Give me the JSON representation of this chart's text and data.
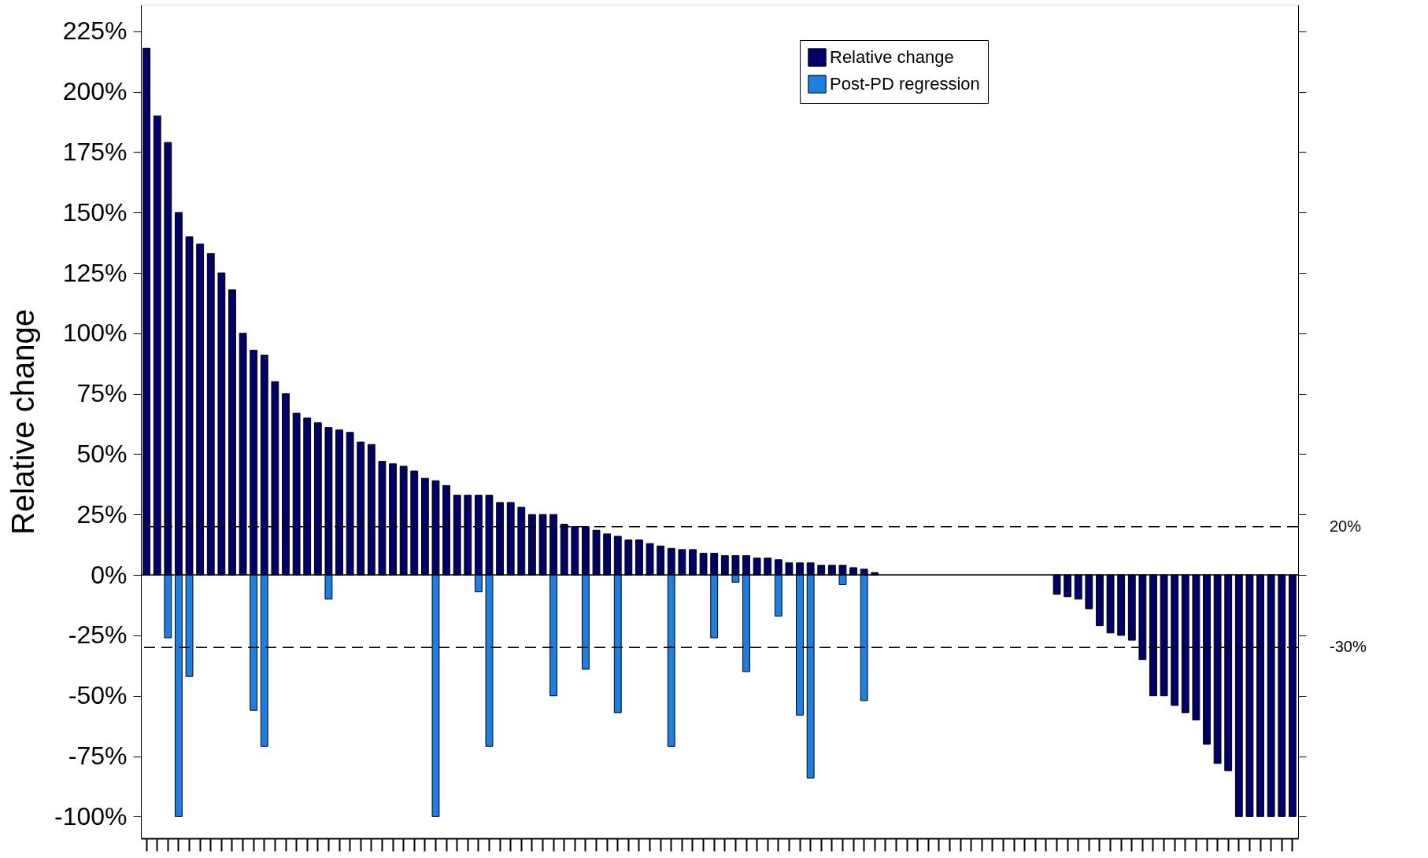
{
  "chart_data": {
    "type": "bar",
    "ylabel": "Relative change",
    "categories": [
      null,
      null,
      null,
      null,
      null,
      null,
      null,
      null,
      null,
      null,
      null,
      null,
      null,
      null,
      null,
      null,
      null,
      null,
      null,
      null,
      null,
      null,
      null,
      null,
      null,
      null,
      null,
      null,
      null,
      null,
      null,
      null,
      null,
      null,
      null,
      null,
      null,
      null,
      null,
      null,
      null,
      null,
      null,
      null,
      null,
      null,
      null,
      null,
      null,
      null,
      null,
      null,
      null,
      null,
      null,
      null,
      null,
      null,
      null,
      null,
      null,
      null,
      null,
      null,
      null,
      null,
      null,
      null,
      null,
      null,
      null,
      null,
      null,
      null,
      null,
      null,
      null,
      null,
      null,
      null,
      null,
      null,
      null,
      null,
      null,
      null,
      null,
      null,
      null,
      null,
      null,
      null,
      null,
      null,
      null,
      null,
      null,
      null,
      null,
      null,
      null,
      null,
      null,
      null,
      null,
      null,
      null,
      null
    ],
    "series": [
      {
        "name": "Relative change",
        "color": "#000066",
        "values": [
          218,
          190,
          179,
          150,
          140,
          137,
          133,
          125,
          118,
          100,
          93,
          91,
          80,
          75,
          67,
          65,
          63,
          61,
          60,
          59,
          55,
          54,
          47,
          46,
          45,
          43,
          40,
          39,
          37,
          33,
          33,
          33,
          33,
          30,
          30,
          28,
          25,
          25,
          25,
          21,
          20,
          20,
          18.5,
          17,
          16,
          14.5,
          14.5,
          13,
          12,
          11,
          10.5,
          10.5,
          9,
          9,
          8,
          8,
          8,
          7,
          7,
          6.3,
          5,
          5,
          5,
          4,
          4,
          4,
          3,
          2.4,
          1,
          null,
          null,
          null,
          null,
          null,
          null,
          null,
          null,
          null,
          null,
          null,
          null,
          null,
          null,
          null,
          null,
          -8,
          -9,
          -10,
          -14,
          -21,
          -24,
          -25,
          -27,
          -35,
          -50,
          -50,
          -54,
          -57,
          -60,
          -70,
          -78,
          -81,
          -100,
          -100,
          -100,
          -100,
          -100,
          -100
        ]
      },
      {
        "name": "Post-PD regression",
        "color": "#1e7fe0",
        "values": [
          null,
          null,
          -26,
          -100,
          -42,
          null,
          null,
          null,
          null,
          null,
          -56,
          -71,
          null,
          null,
          null,
          null,
          null,
          -10,
          null,
          null,
          null,
          null,
          null,
          null,
          null,
          null,
          null,
          -100,
          null,
          null,
          null,
          -7,
          -71,
          null,
          null,
          null,
          null,
          null,
          -50,
          null,
          null,
          -39,
          null,
          null,
          -57,
          null,
          null,
          null,
          null,
          -71,
          null,
          null,
          null,
          -26,
          null,
          -3,
          -40,
          null,
          null,
          -17,
          null,
          -58,
          -84,
          null,
          null,
          -4,
          null,
          -52,
          null,
          null,
          null,
          null,
          null,
          null,
          null,
          null,
          null,
          null,
          null,
          null,
          null,
          null,
          null,
          null,
          null,
          null,
          null,
          null,
          null,
          null,
          null,
          null,
          null,
          null,
          null,
          null,
          null,
          null,
          null,
          null,
          null,
          null,
          null,
          null,
          null,
          null,
          null,
          null
        ]
      }
    ],
    "ylim": [
      -109,
      236
    ],
    "yticks": [
      {
        "value": -100,
        "label": "-100%"
      },
      {
        "value": -75,
        "label": "-75%"
      },
      {
        "value": -50,
        "label": "-50%"
      },
      {
        "value": -25,
        "label": "-25%"
      },
      {
        "value": 0,
        "label": "0%"
      },
      {
        "value": 25,
        "label": "25%"
      },
      {
        "value": 50,
        "label": "50%"
      },
      {
        "value": 75,
        "label": "75%"
      },
      {
        "value": 100,
        "label": "100%"
      },
      {
        "value": 125,
        "label": "125%"
      },
      {
        "value": 150,
        "label": "150%"
      },
      {
        "value": 175,
        "label": "175%"
      },
      {
        "value": 200,
        "label": "200%"
      },
      {
        "value": 225,
        "label": "225%"
      }
    ],
    "ref_lines": [
      {
        "axis": "y",
        "value": 20,
        "label": "20%",
        "line_style": "dashed"
      },
      {
        "axis": "y",
        "value": -30,
        "label": "-30%",
        "line_style": "dashed"
      },
      {
        "axis": "y",
        "value": 0,
        "label": null,
        "line_style": "solid"
      }
    ],
    "grid": false,
    "legend": "top right"
  }
}
